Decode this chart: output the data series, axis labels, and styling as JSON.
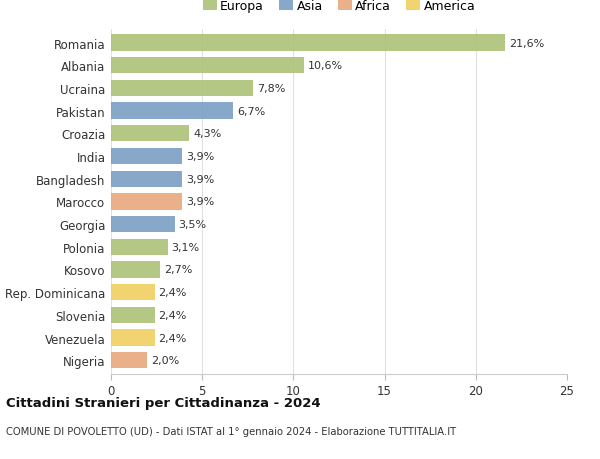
{
  "countries": [
    "Romania",
    "Albania",
    "Ucraina",
    "Pakistan",
    "Croazia",
    "India",
    "Bangladesh",
    "Marocco",
    "Georgia",
    "Polonia",
    "Kosovo",
    "Rep. Dominicana",
    "Slovenia",
    "Venezuela",
    "Nigeria"
  ],
  "values": [
    21.6,
    10.6,
    7.8,
    6.7,
    4.3,
    3.9,
    3.9,
    3.9,
    3.5,
    3.1,
    2.7,
    2.4,
    2.4,
    2.4,
    2.0
  ],
  "labels": [
    "21,6%",
    "10,6%",
    "7,8%",
    "6,7%",
    "4,3%",
    "3,9%",
    "3,9%",
    "3,9%",
    "3,5%",
    "3,1%",
    "2,7%",
    "2,4%",
    "2,4%",
    "2,4%",
    "2,0%"
  ],
  "continents": [
    "Europa",
    "Europa",
    "Europa",
    "Asia",
    "Europa",
    "Asia",
    "Asia",
    "Africa",
    "Asia",
    "Europa",
    "Europa",
    "America",
    "Europa",
    "America",
    "Africa"
  ],
  "colors": {
    "Europa": "#adc178",
    "Asia": "#7b9fc4",
    "Africa": "#e8a87c",
    "America": "#f0d060"
  },
  "legend_order": [
    "Europa",
    "Asia",
    "Africa",
    "America"
  ],
  "xlim": [
    0,
    25
  ],
  "xticks": [
    0,
    5,
    10,
    15,
    20,
    25
  ],
  "title": "Cittadini Stranieri per Cittadinanza - 2024",
  "subtitle": "COMUNE DI POVOLETTO (UD) - Dati ISTAT al 1° gennaio 2024 - Elaborazione TUTTITALIA.IT",
  "background_color": "#ffffff",
  "grid_color": "#e0e0e0"
}
